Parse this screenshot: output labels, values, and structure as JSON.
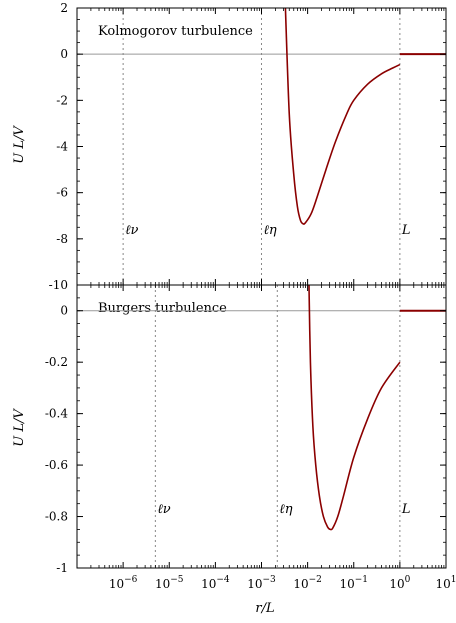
{
  "chart_data": [
    {
      "type": "line",
      "title": "Kolmogorov turbulence",
      "ylabel": "U L/V",
      "xscale": "log",
      "xlim": [
        1e-07,
        10
      ],
      "ylim": [
        -10,
        2
      ],
      "yticks": [
        "2",
        "0",
        "-2",
        "-4",
        "-6",
        "-8",
        "-10"
      ],
      "reference_lines": [
        {
          "label": "ℓν",
          "x": 1e-06
        },
        {
          "label": "ℓη",
          "x": 0.001
        },
        {
          "label": "L",
          "x": 1
        }
      ],
      "series": [
        {
          "color": "#8b0000",
          "x": [
            0.0033,
            0.004,
            0.005,
            0.006,
            0.007,
            0.008,
            0.009,
            0.012,
            0.016,
            0.025,
            0.04,
            0.07,
            0.1,
            0.2,
            0.4,
            0.7,
            1
          ],
          "y": [
            2,
            -2.6,
            -5.2,
            -6.6,
            -7.2,
            -7.35,
            -7.3,
            -6.9,
            -6.2,
            -5.0,
            -3.8,
            -2.6,
            -2.0,
            -1.3,
            -0.85,
            -0.6,
            -0.45
          ]
        },
        {
          "color": "#8b0000",
          "x": [
            1,
            10
          ],
          "y": [
            0,
            0
          ]
        }
      ]
    },
    {
      "type": "line",
      "title": "Burgers turbulence",
      "ylabel": "U L/V",
      "xlabel": "r/L",
      "xscale": "log",
      "xlim": [
        1e-07,
        10
      ],
      "ylim": [
        -1,
        0.1
      ],
      "yticks": [
        "0",
        "-0.2",
        "-0.4",
        "-0.6",
        "-0.8",
        "-1"
      ],
      "xticks": [
        "10−6",
        "10−5",
        "10−4",
        "10−3",
        "10−2",
        "10−1",
        "100",
        "101"
      ],
      "reference_lines": [
        {
          "label": "ℓν",
          "x": 5e-06
        },
        {
          "label": "ℓη",
          "x": 0.0022
        },
        {
          "label": "L",
          "x": 1
        }
      ],
      "series": [
        {
          "color": "#8b0000",
          "x": [
            0.0107,
            0.0115,
            0.013,
            0.015,
            0.018,
            0.022,
            0.027,
            0.031,
            0.035,
            0.045,
            0.06,
            0.1,
            0.2,
            0.4,
            1
          ],
          "y": [
            0.1,
            -0.2,
            -0.45,
            -0.6,
            -0.72,
            -0.8,
            -0.84,
            -0.85,
            -0.845,
            -0.8,
            -0.72,
            -0.57,
            -0.42,
            -0.3,
            -0.2
          ]
        },
        {
          "color": "#8b0000",
          "x": [
            1,
            10
          ],
          "y": [
            0,
            0
          ]
        }
      ]
    }
  ]
}
